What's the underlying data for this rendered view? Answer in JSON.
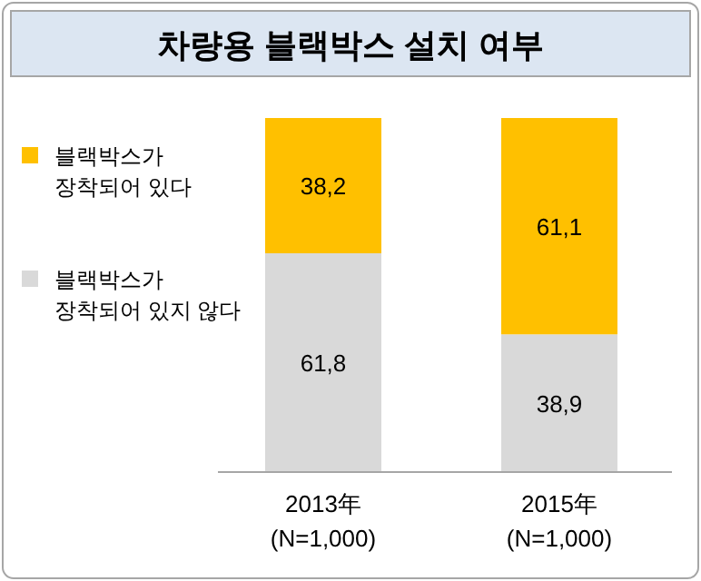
{
  "chart_data": {
    "type": "bar",
    "title": "차량용 블랙박스 설치 여부",
    "stacked": true,
    "categories": [
      "2013年\n(N=1,000)",
      "2015年\n(N=1,000)"
    ],
    "ylim": [
      0,
      100
    ],
    "tick_labels": "x",
    "legend": "left",
    "series": [
      {
        "name": "블랙박스가 장착되어 있지 않다",
        "color": "#d9d9d9",
        "values": [
          61.8,
          38.9
        ],
        "value_labels": [
          "61,8",
          "38,9"
        ]
      },
      {
        "name": "블랙박스가 장착되어 있다",
        "color": "#ffc000",
        "values": [
          38.2,
          61.1
        ],
        "value_labels": [
          "38,2",
          "61,1"
        ]
      }
    ]
  }
}
